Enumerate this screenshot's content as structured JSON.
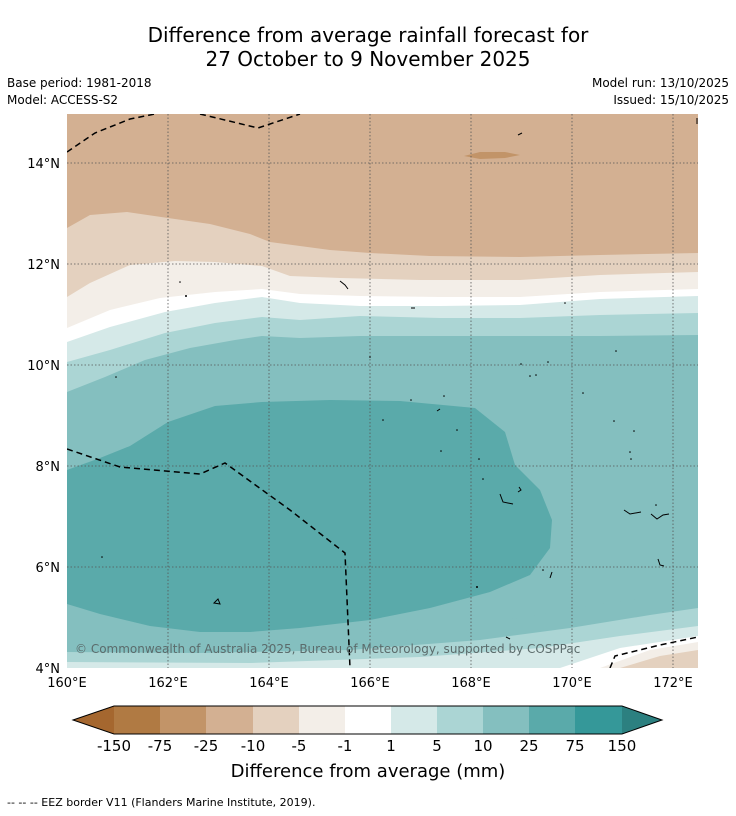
{
  "title": {
    "line1": "Difference from average rainfall forecast for",
    "line2": "27 October to 9 November 2025"
  },
  "meta": {
    "base_period": "Base period: 1981-2018",
    "model": "Model: ACCESS-S2",
    "model_run": "Model run: 13/10/2025",
    "issued": "Issued: 15/10/2025"
  },
  "map": {
    "lon_range": [
      160,
      172.5
    ],
    "lat_range": [
      4,
      15
    ],
    "x_ticks": [
      "160°E",
      "162°E",
      "164°E",
      "166°E",
      "168°E",
      "170°E",
      "172°E"
    ],
    "y_ticks": [
      "4°N",
      "6°N",
      "8°N",
      "10°N",
      "12°N",
      "14°N"
    ],
    "copyright": "© Commonwealth of Australia 2025, Bureau of Meteorology, supported by COSPPac",
    "categories": [
      {
        "name": "less than -150",
        "color": "#a5672f"
      },
      {
        "name": "-150 to -75",
        "color": "#b07a43"
      },
      {
        "name": "-75 to -25",
        "color": "#c29468"
      },
      {
        "name": "-25 to -10",
        "color": "#d3b092"
      },
      {
        "name": "-10 to -5",
        "color": "#e4d1bf"
      },
      {
        "name": "-5 to -1",
        "color": "#f3eee8"
      },
      {
        "name": "-1 to 1",
        "color": "#ffffff"
      },
      {
        "name": "1 to 5",
        "color": "#d5e9e8"
      },
      {
        "name": "5 to 10",
        "color": "#abd5d4"
      },
      {
        "name": "10 to 25",
        "color": "#84bfbf"
      },
      {
        "name": "25 to 75",
        "color": "#5aaaaa"
      },
      {
        "name": "75 to 150",
        "color": "#359899"
      },
      {
        "name": "greater than 150",
        "color": "#2c8080"
      }
    ]
  },
  "colorbar": {
    "labels": [
      "-150",
      "-75",
      "-25",
      "-10",
      "-5",
      "-1",
      "1",
      "5",
      "10",
      "25",
      "75",
      "150"
    ],
    "title": "Difference from average (mm)"
  },
  "footnote": "--  --  -- EEZ border V11 (Flanders Marine Institute, 2019)."
}
